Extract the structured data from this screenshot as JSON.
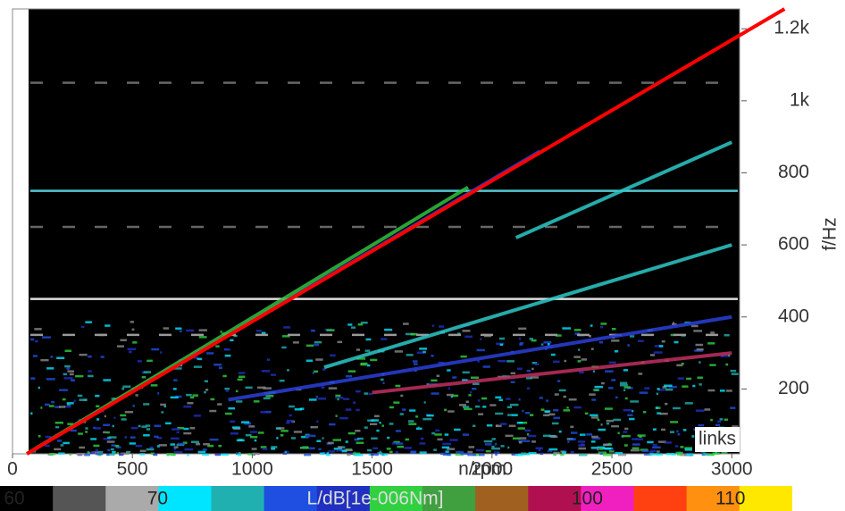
{
  "chart_data": {
    "type": "campbell",
    "xlabel": "n/rpm",
    "ylabel": "f/Hz",
    "annotation": "links",
    "xlim": [
      0,
      3040
    ],
    "ylim": [
      20,
      1255
    ],
    "xticks": [
      0,
      500,
      1000,
      1500,
      2000,
      2500,
      3000
    ],
    "yticks": [
      200,
      400,
      600,
      800,
      {
        "value": 1000,
        "label": "1k"
      },
      {
        "value": 1200,
        "label": "1.2k"
      }
    ],
    "traces": [
      {
        "color": "#2a40d8",
        "x": [
          60,
          2200
        ],
        "y": [
          20,
          860
        ]
      },
      {
        "color": "#2ec8c8",
        "x": [
          2100,
          3000
        ],
        "y": [
          620,
          885
        ]
      },
      {
        "color": "#2ec8c8",
        "x": [
          1300,
          3000
        ],
        "y": [
          260,
          600
        ]
      },
      {
        "color": "#2a40d8",
        "x": [
          900,
          3000
        ],
        "y": [
          170,
          400
        ]
      },
      {
        "color": "#c03060",
        "x": [
          1500,
          3000
        ],
        "y": [
          190,
          300
        ]
      },
      {
        "color": "#30c040",
        "x": [
          60,
          1900
        ],
        "y": [
          20,
          760
        ]
      }
    ],
    "hlines": [
      {
        "y": 750,
        "color": "#50c8d0",
        "dashed": false
      },
      {
        "y": 450,
        "color": "#dddddd",
        "dashed": false
      },
      {
        "y": 350,
        "color": "#999999",
        "dashed": true
      },
      {
        "y": 1050,
        "color": "#666666",
        "dashed": true
      },
      {
        "y": 650,
        "color": "#666666",
        "dashed": true
      }
    ],
    "reference_line": {
      "color": "#ff0000",
      "x": [
        60,
        3220
      ],
      "y": [
        20,
        1255
      ]
    },
    "colorbar": {
      "title": "L/dB[1e-006Nm]",
      "lim": [
        59,
        118
      ],
      "ticks": [
        60,
        70,
        100,
        110
      ],
      "colors": [
        "#000000",
        "#555555",
        "#aaaaaa",
        "#00e5ff",
        "#20b0b0",
        "#1e4fe0",
        "#2030c0",
        "#30d040",
        "#40a040",
        "#a06020",
        "#b01050",
        "#f020c0",
        "#ff4010",
        "#ff9010",
        "#ffe800",
        "#ffffff"
      ]
    }
  }
}
